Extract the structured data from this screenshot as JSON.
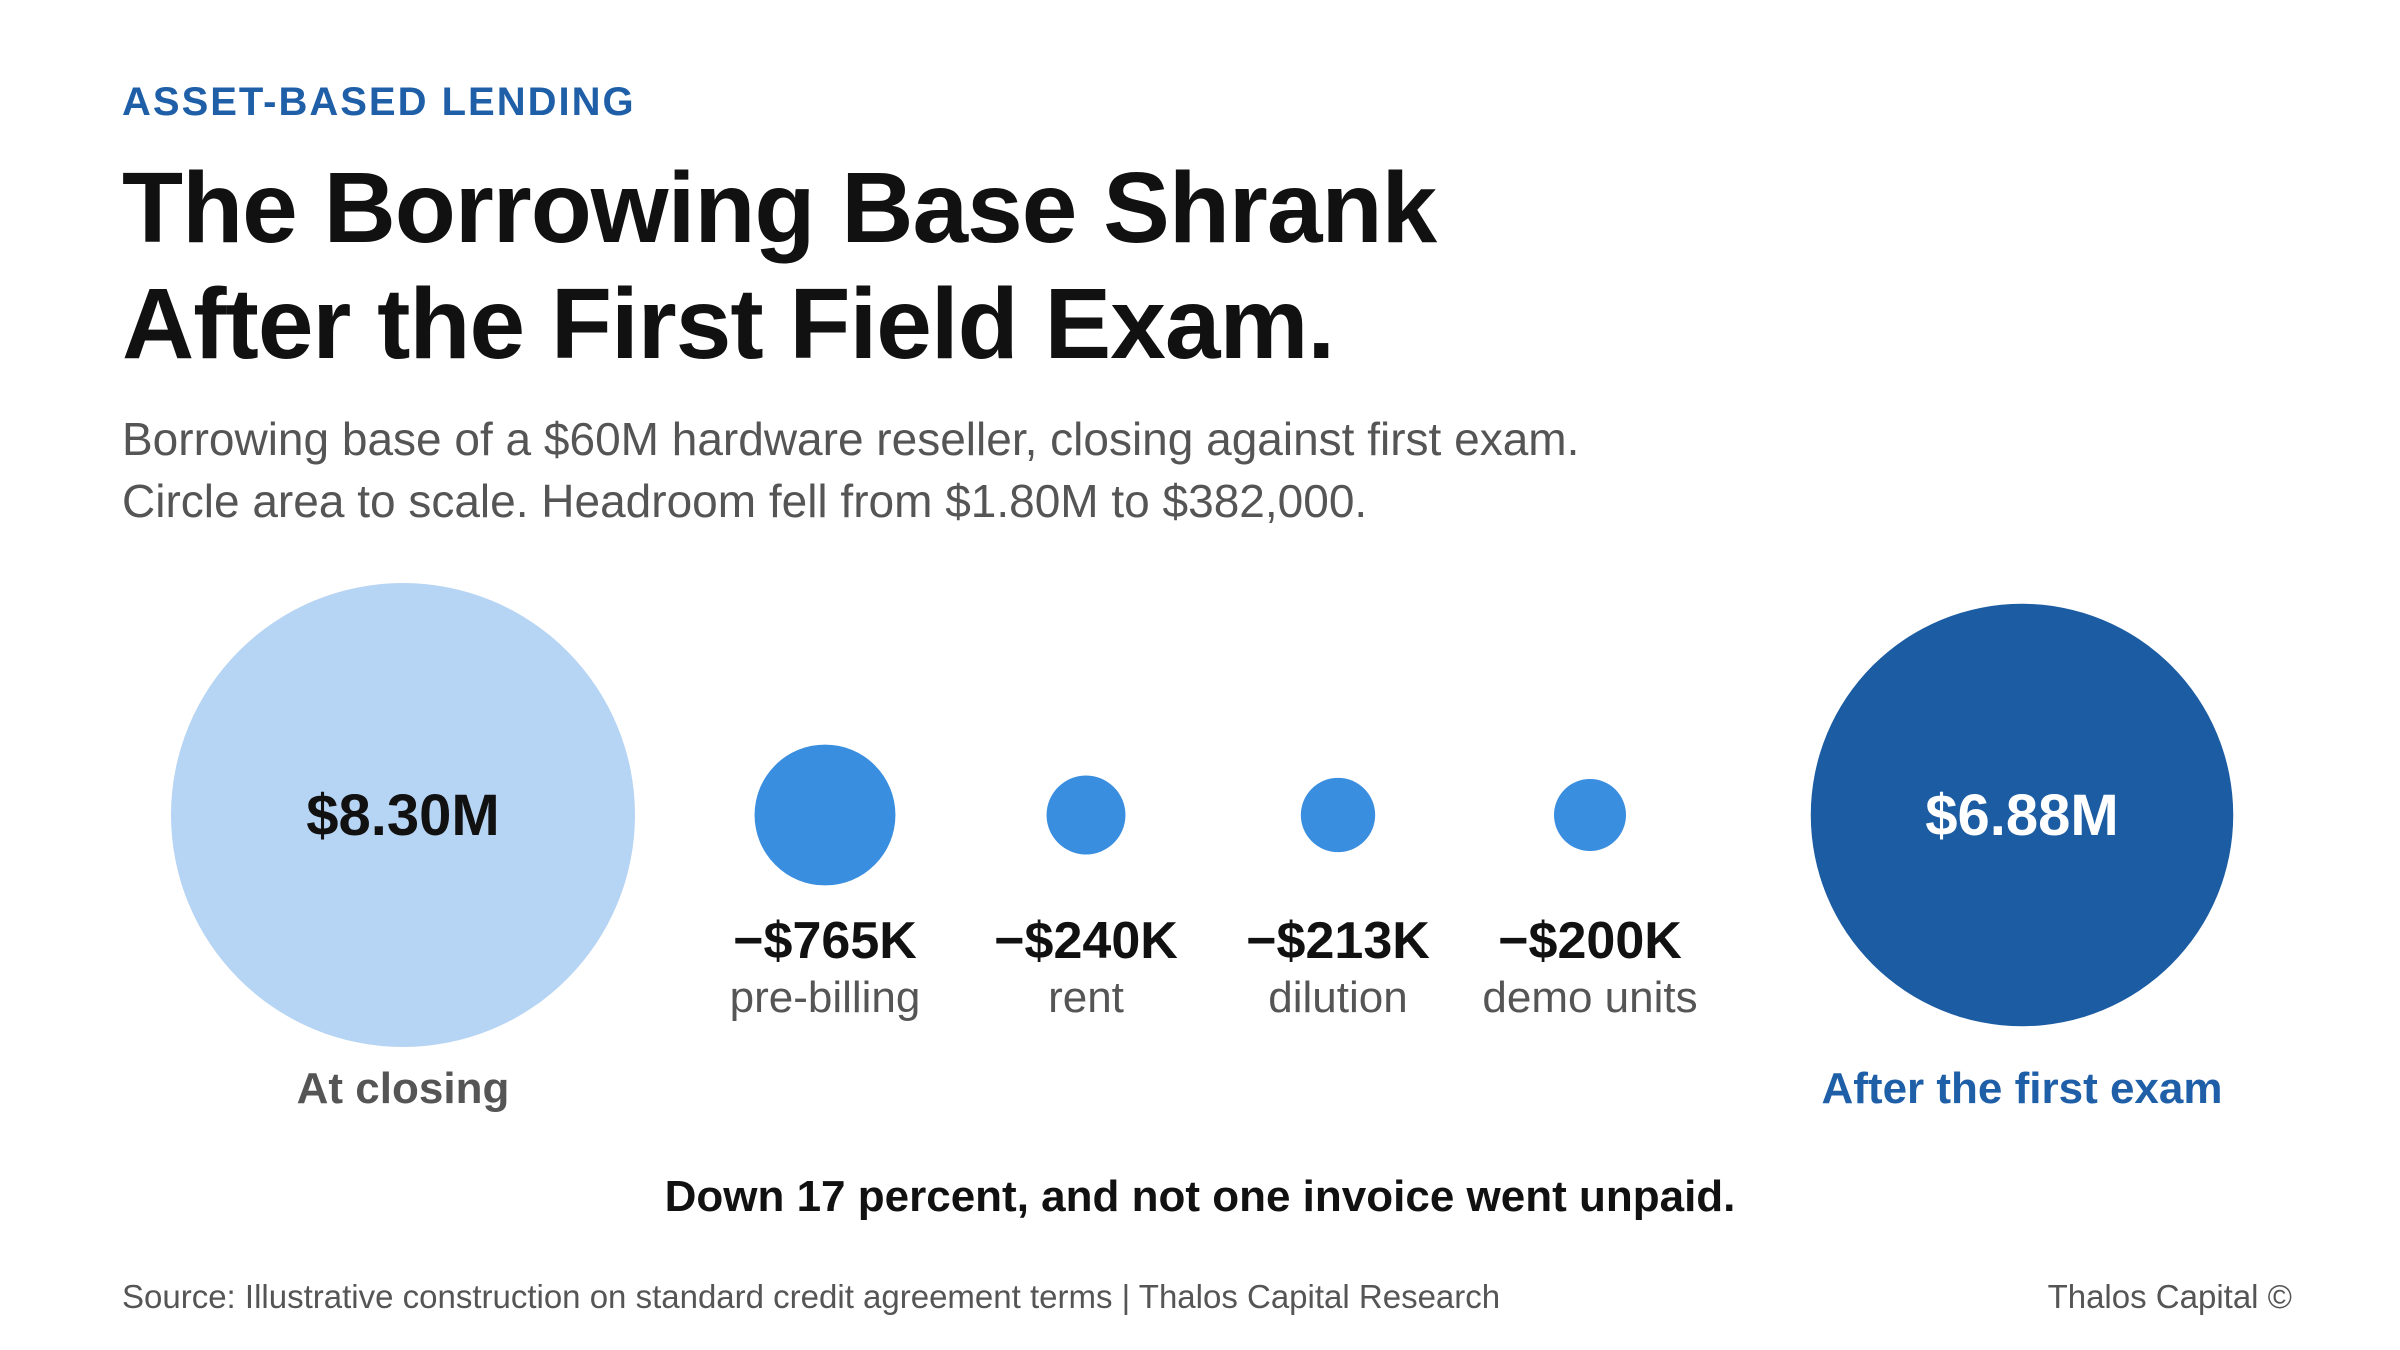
{
  "kicker": "ASSET-BASED LENDING",
  "title": {
    "line1": "The Borrowing Base Shrank",
    "line2": "After the First Field Exam."
  },
  "subtitle": {
    "line1": "Borrowing base of a $60M hardware reseller, closing against first exam.",
    "line2": "Circle area to scale. Headroom fell from $1.80M to $382,000."
  },
  "chart_data": {
    "type": "bubble",
    "units": "USD",
    "start": {
      "label": "At closing",
      "value": 8300000,
      "value_label": "$8.30M",
      "color": "#b6d4f3"
    },
    "deductions": [
      {
        "label": "pre-billing",
        "value": -765000,
        "value_label": "−$765K"
      },
      {
        "label": "rent",
        "value": -240000,
        "value_label": "−$240K"
      },
      {
        "label": "dilution",
        "value": -213000,
        "value_label": "−$213K"
      },
      {
        "label": "demo units",
        "value": -200000,
        "value_label": "−$200K"
      }
    ],
    "deduction_color": "#3a8ee0",
    "end": {
      "label": "After the first exam",
      "value": 6880000,
      "value_label": "$6.88M",
      "color": "#1b5ca3"
    },
    "area_to_scale": true
  },
  "footnote": "Down 17 percent, and not one invoice went unpaid.",
  "footer": {
    "source": "Source: Illustrative construction on standard credit agreement terms | Thalos Capital Research",
    "brand": "Thalos Capital ©"
  },
  "colors": {
    "accent": "#1f5fa8",
    "text": "#111111",
    "muted": "#555555"
  }
}
